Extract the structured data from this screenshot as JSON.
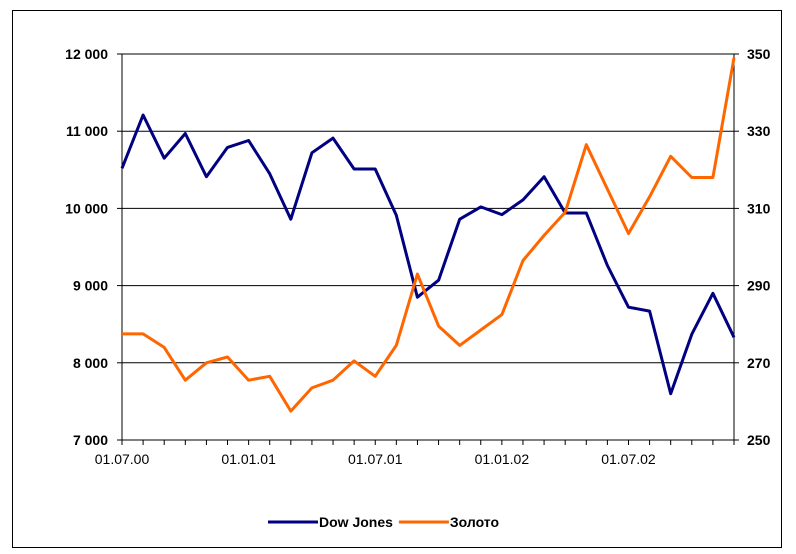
{
  "chart_data": {
    "type": "line",
    "x": [
      "01.07.00",
      "",
      "",
      "",
      "",
      "",
      "01.01.01",
      "",
      "",
      "",
      "",
      "",
      "01.07.01",
      "",
      "",
      "",
      "",
      "",
      "01.01.02",
      "",
      "",
      "",
      "",
      "",
      "01.07.02",
      "",
      "",
      "",
      "",
      ""
    ],
    "x_tick_labels": [
      "01.07.00",
      "01.01.01",
      "01.07.01",
      "01.01.02",
      "01.07.02"
    ],
    "y_left": {
      "ticks": [
        7000,
        8000,
        9000,
        10000,
        11000,
        12000
      ],
      "tick_labels": [
        "7 000",
        "8 000",
        "9 000",
        "10 000",
        "11 000",
        "12 000"
      ],
      "ylim": [
        7000,
        12000
      ]
    },
    "y_right": {
      "ticks": [
        250,
        270,
        290,
        310,
        330,
        350
      ],
      "tick_labels": [
        "250",
        "270",
        "290",
        "310",
        "330",
        "350"
      ],
      "ylim": [
        250,
        350
      ]
    },
    "series": [
      {
        "name": "Dow Jones",
        "axis": "left",
        "color": "#000080",
        "values": [
          10520,
          11210,
          10650,
          10970,
          10410,
          10790,
          10880,
          10450,
          9860,
          10720,
          10910,
          10510,
          10510,
          9910,
          8850,
          9070,
          9860,
          10020,
          9920,
          10110,
          10410,
          9940,
          9940,
          9260,
          8720,
          8670,
          7600,
          8370,
          8900,
          8330
        ]
      },
      {
        "name": "Золото",
        "axis": "right",
        "color": "#ff6600",
        "values": [
          277.5,
          277.5,
          274,
          265.5,
          270,
          271.5,
          265.5,
          266.5,
          257.5,
          263.5,
          265.5,
          270.5,
          266.5,
          274.5,
          293,
          279.5,
          274.5,
          278.5,
          282.5,
          296.5,
          303,
          309,
          326.5,
          315,
          303.5,
          313,
          323.5,
          318,
          318,
          349
        ]
      }
    ],
    "grid": "horizontal",
    "legend": "bottom"
  }
}
